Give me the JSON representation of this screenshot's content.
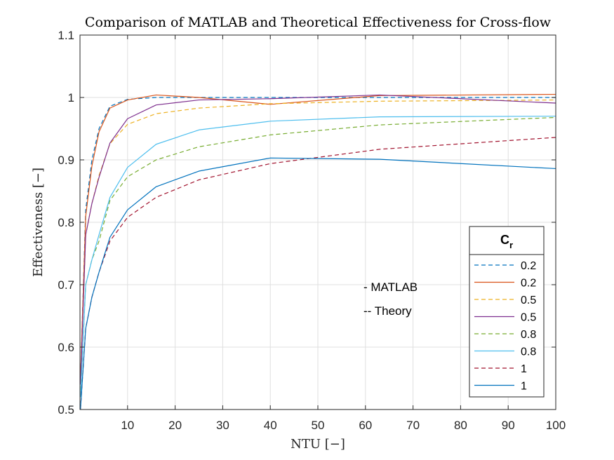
{
  "chart_data": {
    "type": "line",
    "title": "Comparison of MATLAB and Theoretical Effectiveness for Cross-flow",
    "xlabel": "NTU [−]",
    "ylabel": "Effectiveness [−]",
    "xlim": [
      0,
      100
    ],
    "ylim": [
      0.5,
      1.1
    ],
    "xticks": [
      10,
      20,
      30,
      40,
      50,
      60,
      70,
      80,
      90,
      100
    ],
    "yticks": [
      0.5,
      0.6,
      0.7,
      0.8,
      0.9,
      1,
      1.1
    ],
    "ytick_labels": [
      "0.5",
      "0.6",
      "0.7",
      "0.8",
      "0.9",
      "1",
      "1.1"
    ],
    "grid": true,
    "legend": {
      "title": "C",
      "title_subscript": "r",
      "placement": "right"
    },
    "annotations": [
      "- MATLAB",
      "-- Theory"
    ],
    "series": [
      {
        "name": "0.2",
        "color": "#0072BD",
        "dash": true,
        "x": [
          0.1,
          1.2,
          2.5,
          4,
          6.3,
          10,
          16,
          25,
          40,
          63,
          100
        ],
        "y": [
          0.545,
          0.82,
          0.9,
          0.95,
          0.986,
          0.997,
          1.0,
          1.0,
          1.0,
          1.0,
          1.0
        ]
      },
      {
        "name": "0.2",
        "color": "#D95319",
        "dash": false,
        "x": [
          0.1,
          1.2,
          2.5,
          4,
          6.3,
          10,
          16,
          25,
          40,
          63,
          100
        ],
        "y": [
          0.55,
          0.81,
          0.89,
          0.945,
          0.983,
          0.996,
          1.004,
          1.0,
          0.989,
          1.003,
          1.005
        ]
      },
      {
        "name": "0.5",
        "color": "#EDB120",
        "dash": true,
        "x": [
          0.1,
          1.2,
          2.5,
          4,
          6.3,
          10,
          16,
          25,
          40,
          63,
          100
        ],
        "y": [
          0.54,
          0.78,
          0.83,
          0.875,
          0.926,
          0.957,
          0.974,
          0.983,
          0.99,
          0.994,
          0.996
        ]
      },
      {
        "name": "0.5",
        "color": "#7E2F8E",
        "dash": false,
        "x": [
          0.1,
          1.2,
          2.5,
          4,
          6.3,
          10,
          16,
          25,
          40,
          63,
          100
        ],
        "y": [
          0.54,
          0.78,
          0.83,
          0.872,
          0.927,
          0.966,
          0.988,
          0.996,
          0.998,
          1.004,
          0.991
        ]
      },
      {
        "name": "0.8",
        "color": "#77AC30",
        "dash": true,
        "x": [
          0.1,
          1.2,
          2.5,
          4,
          6.3,
          10,
          16,
          25,
          40,
          63,
          100
        ],
        "y": [
          0.52,
          0.7,
          0.74,
          0.77,
          0.835,
          0.873,
          0.9,
          0.921,
          0.94,
          0.956,
          0.968
        ]
      },
      {
        "name": "0.8",
        "color": "#4DBEEE",
        "dash": false,
        "x": [
          0.1,
          1.2,
          2.5,
          4,
          6.3,
          10,
          16,
          25,
          40,
          63,
          100
        ],
        "y": [
          0.52,
          0.7,
          0.74,
          0.78,
          0.84,
          0.888,
          0.925,
          0.948,
          0.962,
          0.969,
          0.97
        ]
      },
      {
        "name": "1",
        "color": "#A2142F",
        "dash": true,
        "x": [
          0.1,
          1.2,
          2.5,
          4,
          6.3,
          10,
          16,
          25,
          40,
          63,
          100
        ],
        "y": [
          0.5,
          0.63,
          0.68,
          0.72,
          0.77,
          0.808,
          0.84,
          0.868,
          0.894,
          0.917,
          0.936
        ]
      },
      {
        "name": "1",
        "color": "#0072BD",
        "dash": false,
        "x": [
          0.1,
          1.2,
          2.5,
          4,
          6.3,
          10,
          16,
          25,
          40,
          63,
          100
        ],
        "y": [
          0.5,
          0.63,
          0.68,
          0.72,
          0.776,
          0.82,
          0.857,
          0.882,
          0.903,
          0.901,
          0.886
        ]
      }
    ]
  }
}
